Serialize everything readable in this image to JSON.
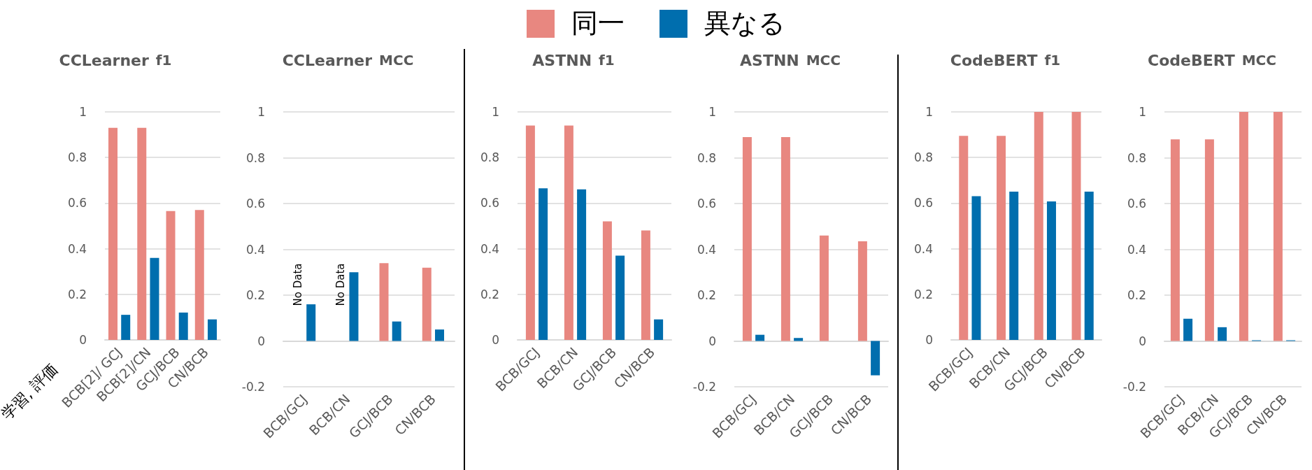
{
  "chart_data": [
    {
      "type": "bar",
      "title": "CCLearner",
      "subtitle": "f1",
      "xlabel": "学習, 評価",
      "categories": [
        "BCB[2]/ GCJ",
        "BCB[2]/CN",
        "GCJ/BCB",
        "CN/BCB"
      ],
      "legend": "top",
      "grid": "y",
      "ylim": [
        0,
        1
      ],
      "yticks": [
        0,
        0.2,
        0.4,
        0.6,
        0.8,
        1
      ],
      "series": [
        {
          "name": "同一",
          "color": "#e88780",
          "values": [
            0.93,
            0.93,
            0.565,
            0.57
          ]
        },
        {
          "name": "異なる",
          "color": "#006eae",
          "values": [
            0.11,
            0.36,
            0.12,
            0.09
          ]
        }
      ]
    },
    {
      "type": "bar",
      "title": "CCLearner",
      "subtitle": "MCC",
      "categories": [
        "BCB/GCJ",
        "BCB/CN",
        "GCJ/BCB",
        "CN/BCB"
      ],
      "grid": "y",
      "ylim": [
        -0.2,
        1
      ],
      "yticks": [
        -0.2,
        0,
        0.2,
        0.4,
        0.6,
        0.8,
        1
      ],
      "annotations": [
        "No Data",
        "No Data"
      ],
      "series": [
        {
          "color": "#e88780",
          "values": [
            null,
            null,
            0.34,
            0.32
          ]
        },
        {
          "color": "#006eae",
          "values": [
            0.16,
            0.3,
            0.085,
            0.05
          ]
        }
      ]
    },
    {
      "type": "bar",
      "title": "ASTNN",
      "subtitle": "f1",
      "categories": [
        "BCB/GCJ",
        "BCB/CN",
        "GCJ/BCB",
        "CN/BCB"
      ],
      "grid": "y",
      "ylim": [
        0,
        1
      ],
      "yticks": [
        0,
        0.2,
        0.4,
        0.6,
        0.8,
        1
      ],
      "series": [
        {
          "color": "#e88780",
          "values": [
            0.94,
            0.94,
            0.52,
            0.48
          ]
        },
        {
          "color": "#006eae",
          "values": [
            0.665,
            0.66,
            0.37,
            0.09
          ]
        }
      ]
    },
    {
      "type": "bar",
      "title": "ASTNN",
      "subtitle": "MCC",
      "categories": [
        "BCB/GCJ",
        "BCB/CN",
        "GCJ/BCB",
        "CN/BCB"
      ],
      "grid": "y",
      "ylim": [
        -0.2,
        1
      ],
      "yticks": [
        -0.2,
        0,
        0.2,
        0.4,
        0.6,
        0.8,
        1
      ],
      "series": [
        {
          "color": "#e88780",
          "values": [
            0.89,
            0.89,
            0.46,
            0.435
          ]
        },
        {
          "color": "#006eae",
          "values": [
            0.027,
            0.013,
            null,
            -0.15
          ]
        }
      ]
    },
    {
      "type": "bar",
      "title": "CodeBERT",
      "subtitle": "f1",
      "categories": [
        "BCB/GCJ",
        "BCB/CN",
        "GCJ/BCB",
        "CN/BCB"
      ],
      "grid": "y",
      "ylim": [
        0,
        1
      ],
      "yticks": [
        0,
        0.2,
        0.4,
        0.6,
        0.8,
        1
      ],
      "series": [
        {
          "color": "#e88780",
          "values": [
            0.895,
            0.895,
            1,
            1
          ]
        },
        {
          "color": "#006eae",
          "values": [
            0.63,
            0.65,
            0.607,
            0.65
          ]
        }
      ]
    },
    {
      "type": "bar",
      "title": "CodeBERT",
      "subtitle": "MCC",
      "categories": [
        "BCB/GCJ",
        "BCB/CN",
        "GCJ/BCB",
        "CN/BCB"
      ],
      "grid": "y",
      "ylim": [
        -0.2,
        1
      ],
      "yticks": [
        -0.2,
        0,
        0.2,
        0.4,
        0.6,
        0.8,
        1
      ],
      "series": [
        {
          "color": "#e88780",
          "values": [
            0.88,
            0.88,
            1,
            1
          ]
        },
        {
          "color": "#006eae",
          "values": [
            0.097,
            0.06,
            0.003,
            0.003
          ]
        }
      ]
    }
  ]
}
